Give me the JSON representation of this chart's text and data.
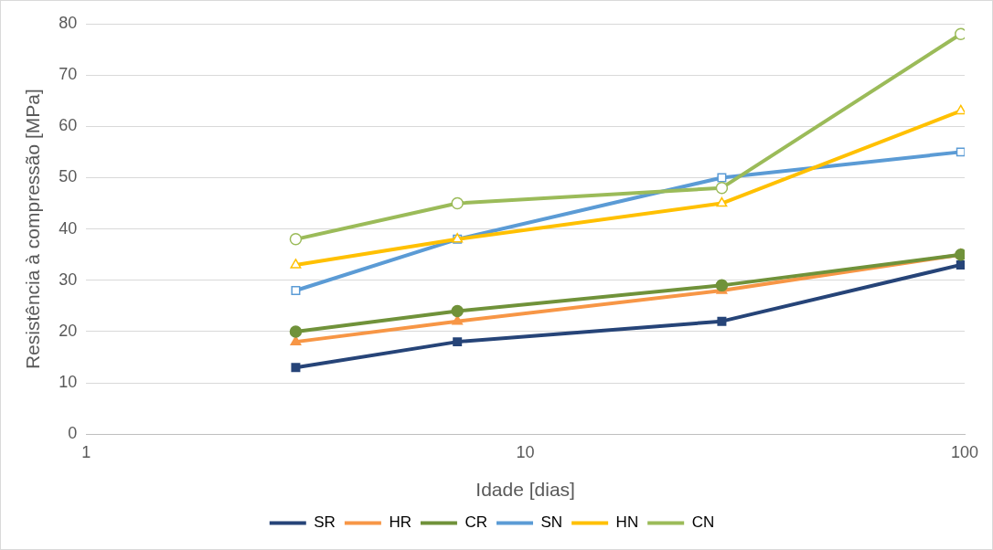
{
  "chart_data": {
    "type": "line",
    "xlabel": "Idade [dias]",
    "ylabel": "Resistência à compressão [MPa]",
    "log": "x",
    "grid": "y",
    "legend": "bottom",
    "xlim": [
      1,
      100
    ],
    "xticks": [
      1,
      10,
      100
    ],
    "ylim": [
      0,
      80
    ],
    "yticks": [
      0,
      10,
      20,
      30,
      40,
      50,
      60,
      70,
      80
    ],
    "x": [
      3,
      7,
      28,
      98
    ],
    "series": [
      {
        "name": "SR",
        "color": "#264478",
        "marker": "square",
        "values": [
          13,
          18,
          22,
          33
        ]
      },
      {
        "name": "HR",
        "color": "#f79646",
        "marker": "triangle",
        "values": [
          18,
          22,
          28,
          35
        ]
      },
      {
        "name": "CR",
        "color": "#70923a",
        "marker": "circle",
        "values": [
          20,
          24,
          29,
          35
        ]
      },
      {
        "name": "SN",
        "color": "#5b9bd5",
        "marker": "square-open",
        "values": [
          28,
          38,
          50,
          55
        ]
      },
      {
        "name": "HN",
        "color": "#ffc000",
        "marker": "triangle-open",
        "values": [
          33,
          38,
          45,
          63
        ]
      },
      {
        "name": "CN",
        "color": "#9bbb59",
        "marker": "circle-open",
        "values": [
          38,
          45,
          48,
          78
        ]
      }
    ]
  }
}
